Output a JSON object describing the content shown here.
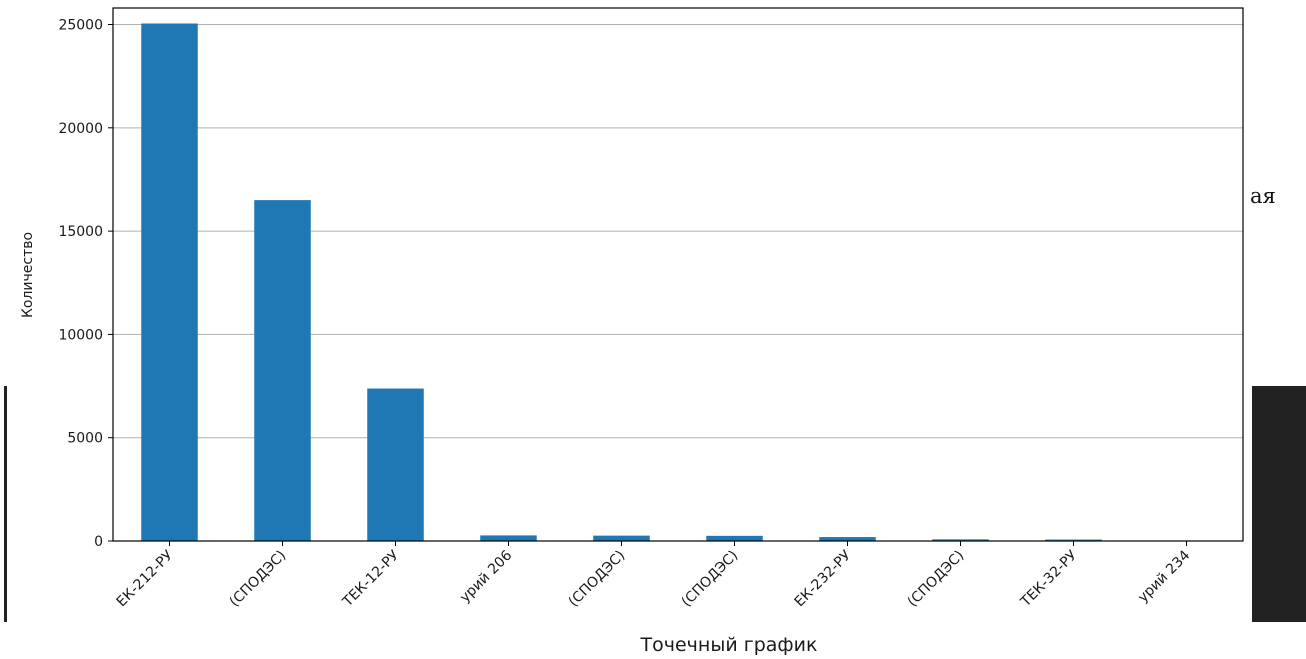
{
  "chart_data": {
    "type": "bar",
    "title": "",
    "ylabel": "Количество",
    "xlabel": "Точечный график",
    "ylim": [
      0,
      25800
    ],
    "yticks": [
      0,
      5000,
      10000,
      15000,
      20000,
      25000
    ],
    "grid": "y",
    "bar_color": "#1f77b4",
    "categories": [
      "ЕК-212-РУ",
      "(СПОДЭС)",
      "ТЕК-12-РУ",
      "урий 206",
      "(СПОДЭС)",
      "(СПОДЭС)",
      "ЕК-232-РУ",
      "(СПОДЭС)",
      "ТЕК-32-РУ",
      "урий 234"
    ],
    "values": [
      25050,
      16500,
      7380,
      270,
      260,
      250,
      190,
      80,
      70,
      20
    ]
  },
  "side_text": "ая"
}
